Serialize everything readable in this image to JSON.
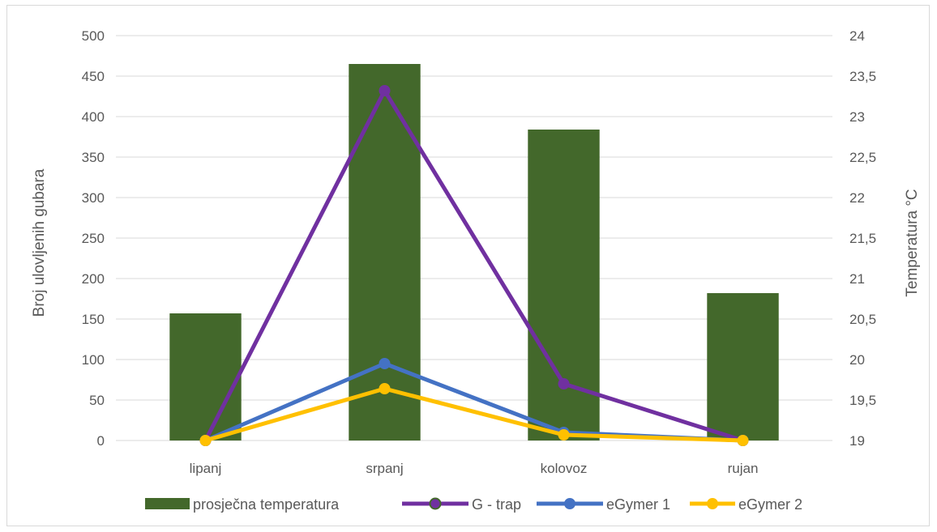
{
  "chart_data": {
    "type": "bar",
    "categories": [
      "lipanj",
      "srpanj",
      "kolovoz",
      "rujan"
    ],
    "ylabel": "Broj ulovljenih gubara",
    "y2label": "Temperatura °C",
    "ylim": [
      0,
      500
    ],
    "y2lim": [
      19,
      24
    ],
    "yticks": [
      "0",
      "50",
      "100",
      "150",
      "200",
      "250",
      "300",
      "350",
      "400",
      "450",
      "500"
    ],
    "y2ticks": [
      "19",
      "19,5",
      "20",
      "20,5",
      "21",
      "21,5",
      "22",
      "22,5",
      "23",
      "23,5",
      "24"
    ],
    "grid": true,
    "legend_position": "bottom",
    "series": [
      {
        "name": "prosječna temperatura",
        "kind": "bar",
        "axis": "right",
        "color": "#43682b",
        "values": [
          20.57,
          23.65,
          22.84,
          20.82
        ]
      },
      {
        "name": "G - trap",
        "kind": "line",
        "axis": "left",
        "color": "#7030a0",
        "values": [
          0,
          432,
          70,
          0
        ]
      },
      {
        "name": "eGymer 1",
        "kind": "line",
        "axis": "left",
        "color": "#4472c4",
        "values": [
          0,
          95,
          10,
          0
        ]
      },
      {
        "name": "eGymer 2",
        "kind": "line",
        "axis": "left",
        "color": "#ffc000",
        "values": [
          0,
          64,
          7,
          0
        ]
      }
    ]
  }
}
